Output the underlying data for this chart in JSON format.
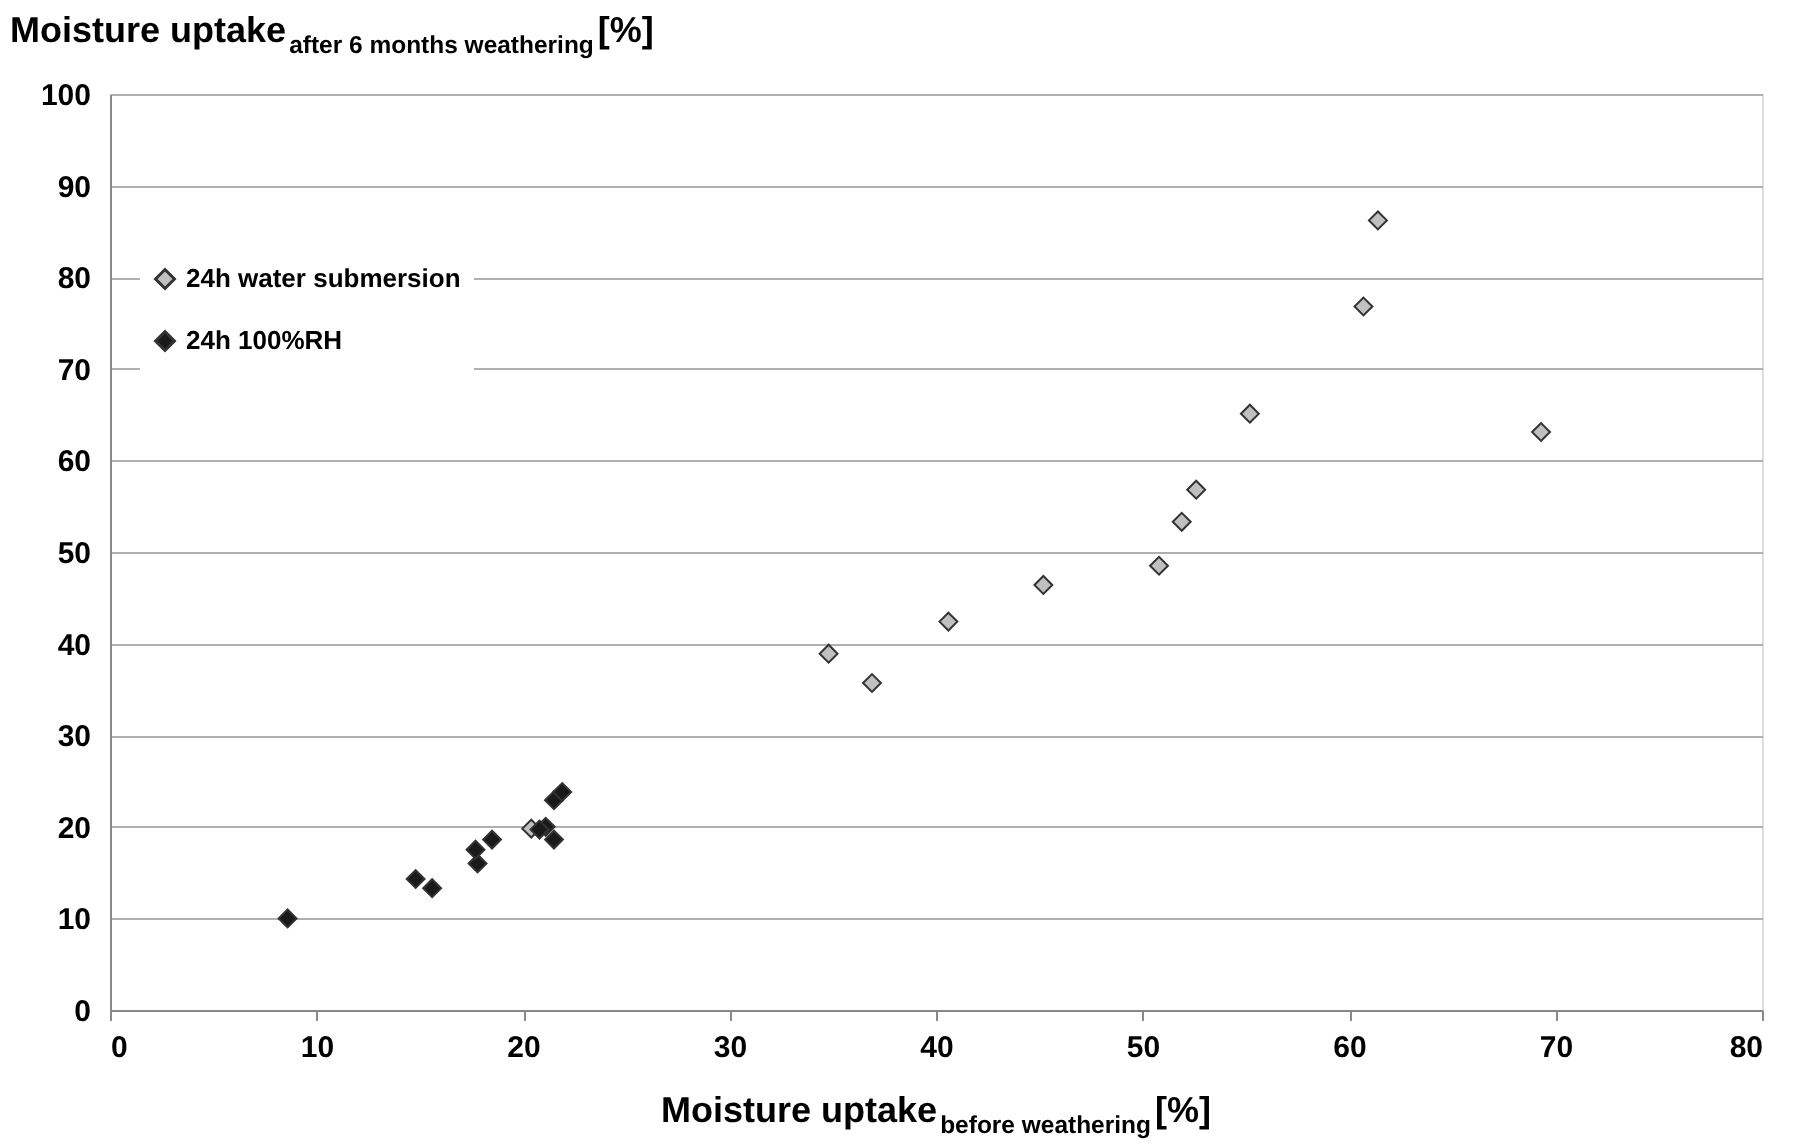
{
  "chart_data": {
    "type": "scatter",
    "xlabel": "Moisture uptake$_{before weathering}$[%]",
    "ylabel": "Moisture uptake$_{after 6 months weathering}$[%]",
    "series": [
      {
        "name": "24h water submersion",
        "color": "#c0c0c0",
        "x": [
          20.4,
          34.8,
          36.9,
          40.6,
          45.2,
          50.8,
          51.9,
          52.6,
          55.2,
          60.7,
          61.4,
          69.3
        ],
        "values": [
          19.8,
          38.9,
          35.7,
          42.4,
          46.4,
          48.5,
          53.3,
          56.8,
          65.1,
          76.8,
          86.2,
          63.1
        ]
      },
      {
        "name": "24h 100%RH",
        "color": "#1a1a1a",
        "x": [
          8.6,
          14.8,
          15.6,
          17.8,
          17.7,
          18.5,
          21.1,
          21.5,
          20.8,
          21.5,
          21.9
        ],
        "values": [
          10.0,
          14.3,
          13.3,
          16.0,
          17.5,
          18.6,
          20.0,
          18.6,
          19.7,
          22.9,
          23.8
        ]
      }
    ],
    "xlim": [
      0,
      80
    ],
    "xticks": [
      0,
      10,
      20,
      30,
      40,
      50,
      60,
      70,
      80
    ],
    "ylim": [
      0,
      100
    ],
    "yticks": [
      0,
      10,
      20,
      30,
      40,
      50,
      60,
      70,
      80,
      90,
      100
    ],
    "grid": "y",
    "legend": "top left",
    "marker": "diamond"
  }
}
